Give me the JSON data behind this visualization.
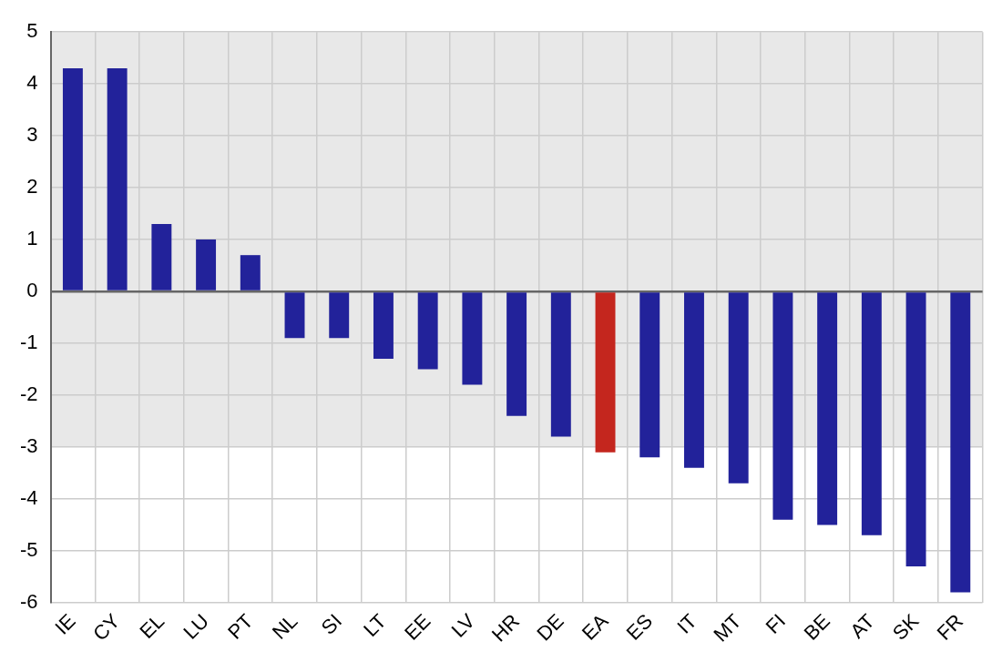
{
  "chart_data": {
    "type": "bar",
    "categories": [
      "IE",
      "CY",
      "EL",
      "LU",
      "PT",
      "NL",
      "SI",
      "LT",
      "EE",
      "LV",
      "HR",
      "DE",
      "EA",
      "ES",
      "IT",
      "MT",
      "FI",
      "BE",
      "AT",
      "SK",
      "FR"
    ],
    "values": [
      4.3,
      4.3,
      1.3,
      1.0,
      0.7,
      -0.9,
      -0.9,
      -1.3,
      -1.5,
      -1.8,
      -2.4,
      -2.8,
      -3.1,
      -3.2,
      -3.4,
      -3.7,
      -4.4,
      -4.5,
      -4.7,
      -5.3,
      -5.8
    ],
    "colors": [
      "#22229a",
      "#22229a",
      "#22229a",
      "#22229a",
      "#22229a",
      "#22229a",
      "#22229a",
      "#22229a",
      "#22229a",
      "#22229a",
      "#22229a",
      "#22229a",
      "#c4261e",
      "#22229a",
      "#22229a",
      "#22229a",
      "#22229a",
      "#22229a",
      "#22229a",
      "#22229a",
      "#22229a"
    ],
    "ylim": [
      -6,
      5
    ],
    "yticks": [
      -6,
      -5,
      -4,
      -3,
      -2,
      -1,
      0,
      1,
      2,
      3,
      4,
      5
    ],
    "bands": [
      {
        "axis": "y",
        "from": -3,
        "to": 5,
        "color": "#e8e8e8"
      }
    ],
    "grid": true
  }
}
